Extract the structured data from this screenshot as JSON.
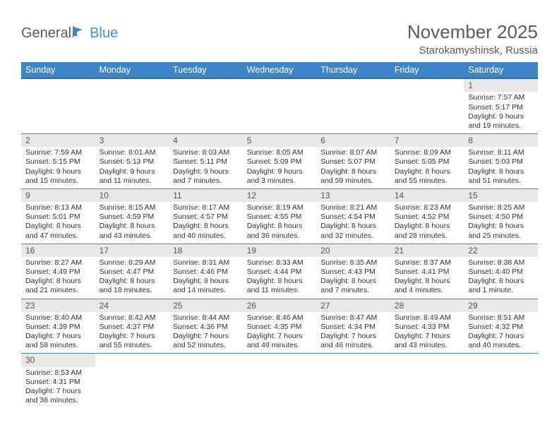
{
  "logo": {
    "text1": "General",
    "text2": "Blue",
    "flag_color": "#3d85c6"
  },
  "title": "November 2025",
  "subtitle": "Starokamyshinsk, Russia",
  "colors": {
    "header_bg": "#3d85c6",
    "header_border": "#2f6da3",
    "daynum_bg": "#e8e8e8",
    "row_border": "#3d85c6",
    "text_gray": "#5a5a5a"
  },
  "weekdays": [
    "Sunday",
    "Monday",
    "Tuesday",
    "Wednesday",
    "Thursday",
    "Friday",
    "Saturday"
  ],
  "weeks": [
    [
      null,
      null,
      null,
      null,
      null,
      null,
      {
        "n": "1",
        "sr": "7:57 AM",
        "ss": "5:17 PM",
        "dl": "9 hours and 19 minutes."
      }
    ],
    [
      {
        "n": "2",
        "sr": "7:59 AM",
        "ss": "5:15 PM",
        "dl": "9 hours and 15 minutes."
      },
      {
        "n": "3",
        "sr": "8:01 AM",
        "ss": "5:13 PM",
        "dl": "9 hours and 11 minutes."
      },
      {
        "n": "4",
        "sr": "8:03 AM",
        "ss": "5:11 PM",
        "dl": "9 hours and 7 minutes."
      },
      {
        "n": "5",
        "sr": "8:05 AM",
        "ss": "5:09 PM",
        "dl": "9 hours and 3 minutes."
      },
      {
        "n": "6",
        "sr": "8:07 AM",
        "ss": "5:07 PM",
        "dl": "8 hours and 59 minutes."
      },
      {
        "n": "7",
        "sr": "8:09 AM",
        "ss": "5:05 PM",
        "dl": "8 hours and 55 minutes."
      },
      {
        "n": "8",
        "sr": "8:11 AM",
        "ss": "5:03 PM",
        "dl": "8 hours and 51 minutes."
      }
    ],
    [
      {
        "n": "9",
        "sr": "8:13 AM",
        "ss": "5:01 PM",
        "dl": "8 hours and 47 minutes."
      },
      {
        "n": "10",
        "sr": "8:15 AM",
        "ss": "4:59 PM",
        "dl": "8 hours and 43 minutes."
      },
      {
        "n": "11",
        "sr": "8:17 AM",
        "ss": "4:57 PM",
        "dl": "8 hours and 40 minutes."
      },
      {
        "n": "12",
        "sr": "8:19 AM",
        "ss": "4:55 PM",
        "dl": "8 hours and 36 minutes."
      },
      {
        "n": "13",
        "sr": "8:21 AM",
        "ss": "4:54 PM",
        "dl": "8 hours and 32 minutes."
      },
      {
        "n": "14",
        "sr": "8:23 AM",
        "ss": "4:52 PM",
        "dl": "8 hours and 28 minutes."
      },
      {
        "n": "15",
        "sr": "8:25 AM",
        "ss": "4:50 PM",
        "dl": "8 hours and 25 minutes."
      }
    ],
    [
      {
        "n": "16",
        "sr": "8:27 AM",
        "ss": "4:49 PM",
        "dl": "8 hours and 21 minutes."
      },
      {
        "n": "17",
        "sr": "8:29 AM",
        "ss": "4:47 PM",
        "dl": "8 hours and 18 minutes."
      },
      {
        "n": "18",
        "sr": "8:31 AM",
        "ss": "4:46 PM",
        "dl": "8 hours and 14 minutes."
      },
      {
        "n": "19",
        "sr": "8:33 AM",
        "ss": "4:44 PM",
        "dl": "8 hours and 11 minutes."
      },
      {
        "n": "20",
        "sr": "8:35 AM",
        "ss": "4:43 PM",
        "dl": "8 hours and 7 minutes."
      },
      {
        "n": "21",
        "sr": "8:37 AM",
        "ss": "4:41 PM",
        "dl": "8 hours and 4 minutes."
      },
      {
        "n": "22",
        "sr": "8:38 AM",
        "ss": "4:40 PM",
        "dl": "8 hours and 1 minute."
      }
    ],
    [
      {
        "n": "23",
        "sr": "8:40 AM",
        "ss": "4:39 PM",
        "dl": "7 hours and 58 minutes."
      },
      {
        "n": "24",
        "sr": "8:42 AM",
        "ss": "4:37 PM",
        "dl": "7 hours and 55 minutes."
      },
      {
        "n": "25",
        "sr": "8:44 AM",
        "ss": "4:36 PM",
        "dl": "7 hours and 52 minutes."
      },
      {
        "n": "26",
        "sr": "8:46 AM",
        "ss": "4:35 PM",
        "dl": "7 hours and 49 minutes."
      },
      {
        "n": "27",
        "sr": "8:47 AM",
        "ss": "4:34 PM",
        "dl": "7 hours and 46 minutes."
      },
      {
        "n": "28",
        "sr": "8:49 AM",
        "ss": "4:33 PM",
        "dl": "7 hours and 43 minutes."
      },
      {
        "n": "29",
        "sr": "8:51 AM",
        "ss": "4:32 PM",
        "dl": "7 hours and 40 minutes."
      }
    ],
    [
      {
        "n": "30",
        "sr": "8:53 AM",
        "ss": "4:31 PM",
        "dl": "7 hours and 38 minutes."
      },
      null,
      null,
      null,
      null,
      null,
      null
    ]
  ]
}
